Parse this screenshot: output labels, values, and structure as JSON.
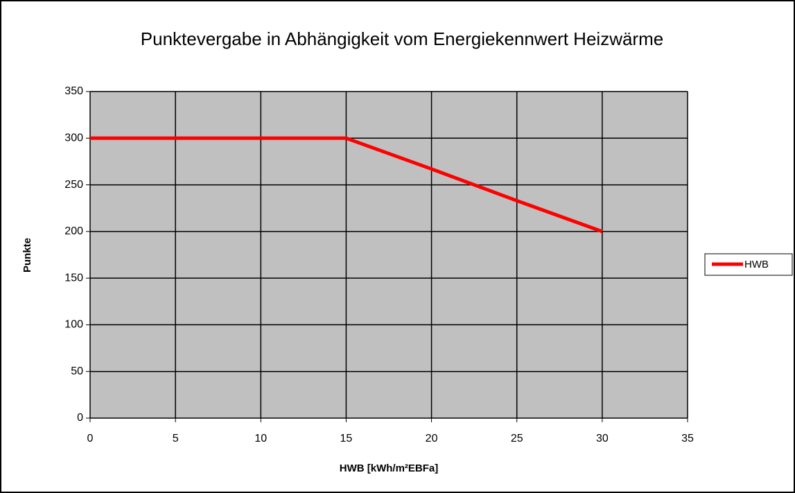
{
  "chart_data": {
    "type": "line",
    "title": "Punktevergabe in Abhängigkeit vom Energiekennwert Heizwärme",
    "xlabel": "HWB [kWh/m²EBFa]",
    "ylabel": "Punkte",
    "x": [
      0,
      5,
      10,
      15,
      20,
      25,
      30
    ],
    "series": [
      {
        "name": "HWB",
        "color": "#ff0000",
        "values": [
          300,
          300,
          300,
          300,
          267,
          233,
          200
        ]
      }
    ],
    "xlim": [
      0,
      35
    ],
    "xticks": [
      0,
      5,
      10,
      15,
      20,
      25,
      30,
      35
    ],
    "ylim": [
      0,
      350
    ],
    "yticks": [
      0,
      50,
      100,
      150,
      200,
      250,
      300,
      350
    ],
    "grid": true,
    "legend": "right"
  }
}
